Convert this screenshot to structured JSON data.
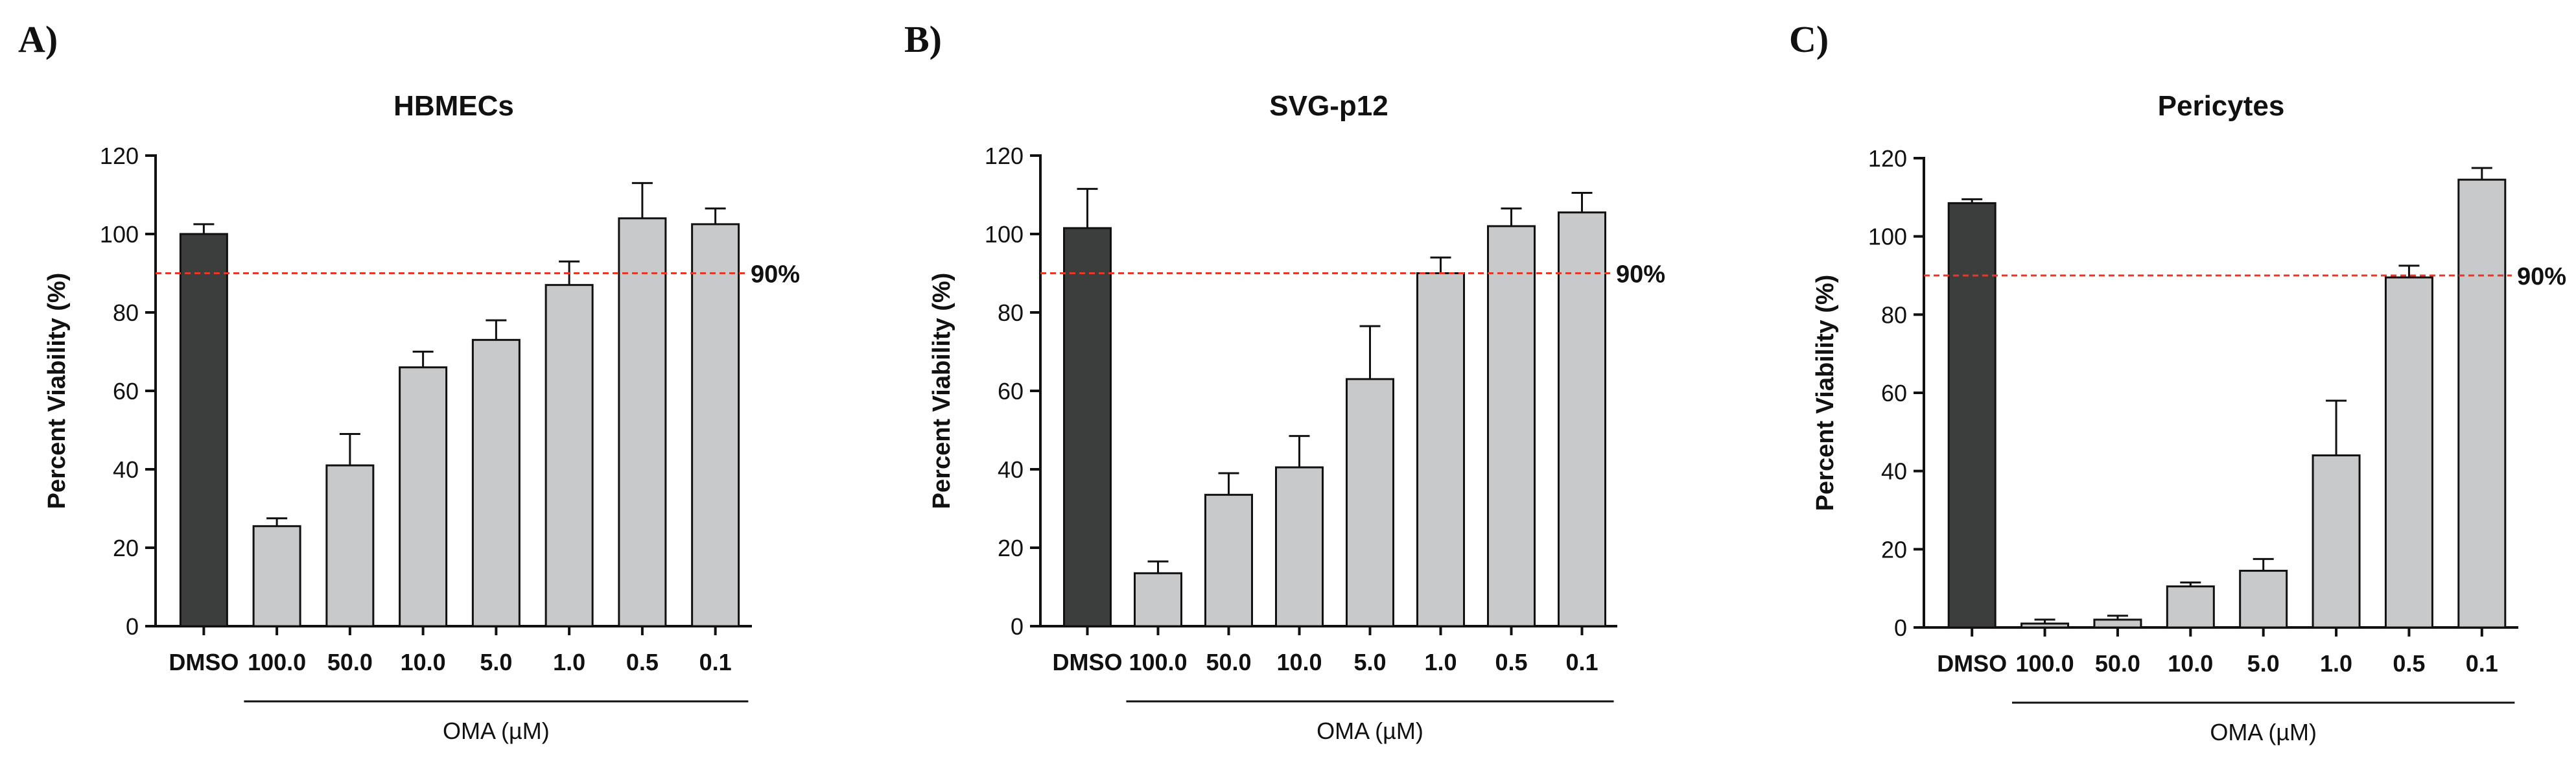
{
  "figure": {
    "threshold_label": "90%",
    "colors": {
      "control": "#3c3d3d",
      "treatment": "#c8c9cb",
      "threshold": "#e03a2a",
      "axis": "#111111"
    }
  },
  "chart_data": [
    {
      "panel_label": "A)",
      "type": "bar",
      "title": "HBMECs",
      "ylabel": "Percent Viability (%)",
      "xlabel": "",
      "group_label": "OMA (µM)",
      "ylim": [
        0,
        120
      ],
      "yticks": [
        0,
        20,
        40,
        60,
        80,
        100,
        120
      ],
      "threshold": 90,
      "categories": [
        "DMSO",
        "100.0",
        "50.0",
        "10.0",
        "5.0",
        "1.0",
        "0.5",
        "0.1"
      ],
      "values": [
        100,
        25.5,
        41,
        66,
        73,
        87,
        104,
        102.5
      ],
      "errors": [
        2.5,
        2,
        8,
        4,
        5,
        6,
        9,
        4
      ]
    },
    {
      "panel_label": "B)",
      "type": "bar",
      "title": "SVG-p12",
      "ylabel": "Percent Viability (%)",
      "xlabel": "",
      "group_label": "OMA (µM)",
      "ylim": [
        0,
        120
      ],
      "yticks": [
        0,
        20,
        40,
        60,
        80,
        100,
        120
      ],
      "threshold": 90,
      "categories": [
        "DMSO",
        "100.0",
        "50.0",
        "10.0",
        "5.0",
        "1.0",
        "0.5",
        "0.1"
      ],
      "values": [
        101.5,
        13.5,
        33.5,
        40.5,
        63,
        90,
        102,
        105.5
      ],
      "errors": [
        10,
        3,
        5.5,
        8,
        13.5,
        4,
        4.5,
        5
      ]
    },
    {
      "panel_label": "C)",
      "type": "bar",
      "title": "Pericytes",
      "ylabel": "Percent Viability (%)",
      "xlabel": "",
      "group_label": "OMA (µM)",
      "ylim": [
        0,
        120
      ],
      "yticks": [
        0,
        20,
        40,
        60,
        80,
        100,
        120
      ],
      "threshold": 90,
      "categories": [
        "DMSO",
        "100.0",
        "50.0",
        "10.0",
        "5.0",
        "1.0",
        "0.5",
        "0.1"
      ],
      "values": [
        108.5,
        1,
        2,
        10.5,
        14.5,
        44,
        89.5,
        114.5
      ],
      "errors": [
        1,
        1,
        1,
        1,
        3,
        14,
        3,
        3
      ]
    }
  ]
}
